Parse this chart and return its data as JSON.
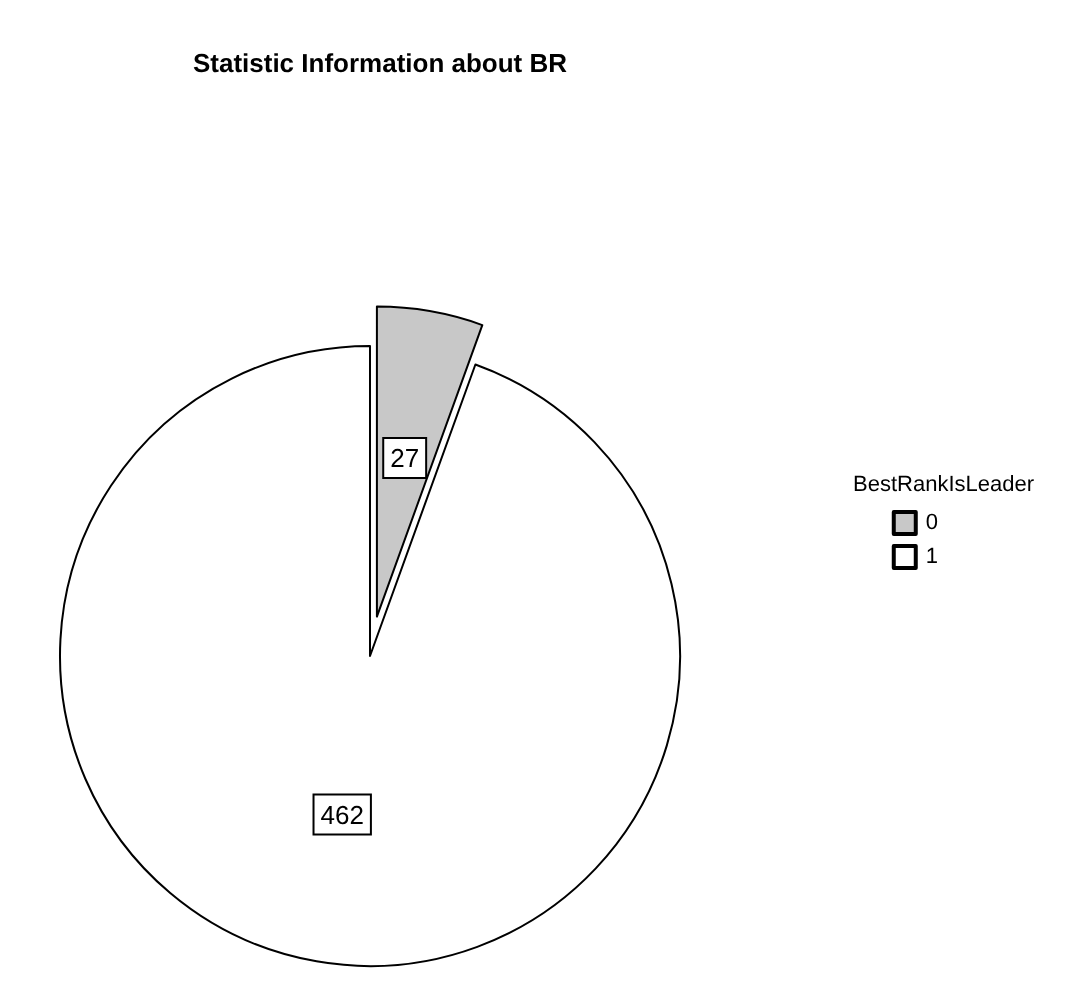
{
  "chart_data": {
    "type": "pie",
    "title": "Statistic Information about BR",
    "legend_title": "BestRankIsLeader",
    "categories": [
      "0",
      "1"
    ],
    "values": [
      27,
      462
    ],
    "colors": [
      "#c8c8c8",
      "#ffffff"
    ],
    "data_labels": true,
    "legend": "right"
  }
}
